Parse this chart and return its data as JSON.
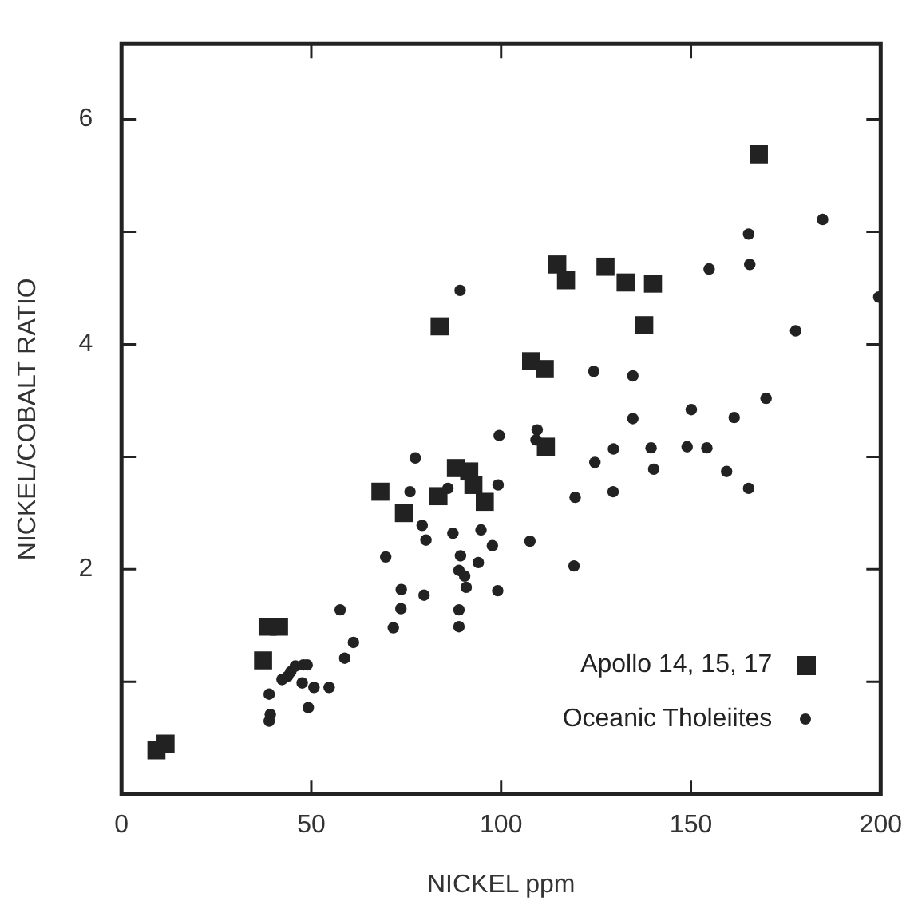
{
  "chart_data": {
    "type": "scatter",
    "xlabel": "NICKEL ppm",
    "ylabel": "NICKEL/COBALT RATIO",
    "xlim": [
      0,
      200
    ],
    "xticks": [
      0,
      50,
      100,
      150,
      200
    ],
    "ylim": [
      0,
      6.67
    ],
    "yticks": [
      {
        "value": 1,
        "label": null
      },
      2,
      {
        "value": 3,
        "label": null
      },
      4,
      {
        "value": 5,
        "label": null
      },
      6
    ],
    "legend": "bottom right",
    "grid": false,
    "series": [
      {
        "name": "Apollo 14, 15, 17",
        "color": "#222222",
        "marker": "square",
        "x": [
          9.2,
          11.6,
          37.3,
          38.5,
          41.5,
          68.2,
          74.4,
          83.5,
          83.8,
          88.1,
          91.6,
          92.7,
          95.7,
          107.9,
          111.5,
          111.8,
          114.8,
          117.1,
          127.5,
          132.8,
          137.7,
          140.0,
          167.9
        ],
        "values": [
          0.39,
          0.45,
          1.19,
          1.49,
          1.49,
          2.69,
          2.5,
          2.65,
          4.16,
          2.9,
          2.87,
          2.75,
          2.6,
          3.85,
          3.78,
          3.09,
          4.71,
          4.57,
          4.69,
          4.55,
          4.17,
          4.54,
          5.69
        ]
      },
      {
        "name": "Oceanic Tholeiites",
        "color": "#222222",
        "marker": "circle",
        "x": [
          38.9,
          39.2,
          38.9,
          42.3,
          43.8,
          44.6,
          45.8,
          47.9,
          47.6,
          48.9,
          50.7,
          49.2,
          54.7,
          57.6,
          58.8,
          61.1,
          69.6,
          71.6,
          73.7,
          73.6,
          76.0,
          77.4,
          79.2,
          79.7,
          80.2,
          86.0,
          87.3,
          89.2,
          88.9,
          89.3,
          88.9,
          88.9,
          90.4,
          90.8,
          94.0,
          94.7,
          97.7,
          99.1,
          99.2,
          99.5,
          107.6,
          109.5,
          109.2,
          119.5,
          119.2,
          124.4,
          124.7,
          129.6,
          129.5,
          134.7,
          134.7,
          139.5,
          140.2,
          149.0,
          150.1,
          154.2,
          154.8,
          159.4,
          161.4,
          165.2,
          165.5,
          165.2,
          169.8,
          177.6,
          184.7,
          199.5
        ],
        "values": [
          0.89,
          0.71,
          0.65,
          1.02,
          1.05,
          1.09,
          1.14,
          1.15,
          0.99,
          1.15,
          0.95,
          0.77,
          0.95,
          1.64,
          1.21,
          1.35,
          2.11,
          1.48,
          1.82,
          1.65,
          2.69,
          2.99,
          2.39,
          1.77,
          2.26,
          2.72,
          2.32,
          4.48,
          1.99,
          2.12,
          1.64,
          1.49,
          1.94,
          1.84,
          2.06,
          2.35,
          2.21,
          1.81,
          2.75,
          3.19,
          2.25,
          3.24,
          3.15,
          2.64,
          2.03,
          3.76,
          2.95,
          3.07,
          2.69,
          3.72,
          3.34,
          3.08,
          2.89,
          3.09,
          3.42,
          3.08,
          4.67,
          2.87,
          3.35,
          4.98,
          4.71,
          2.72,
          3.52,
          4.12,
          5.11,
          4.42
        ]
      }
    ]
  }
}
